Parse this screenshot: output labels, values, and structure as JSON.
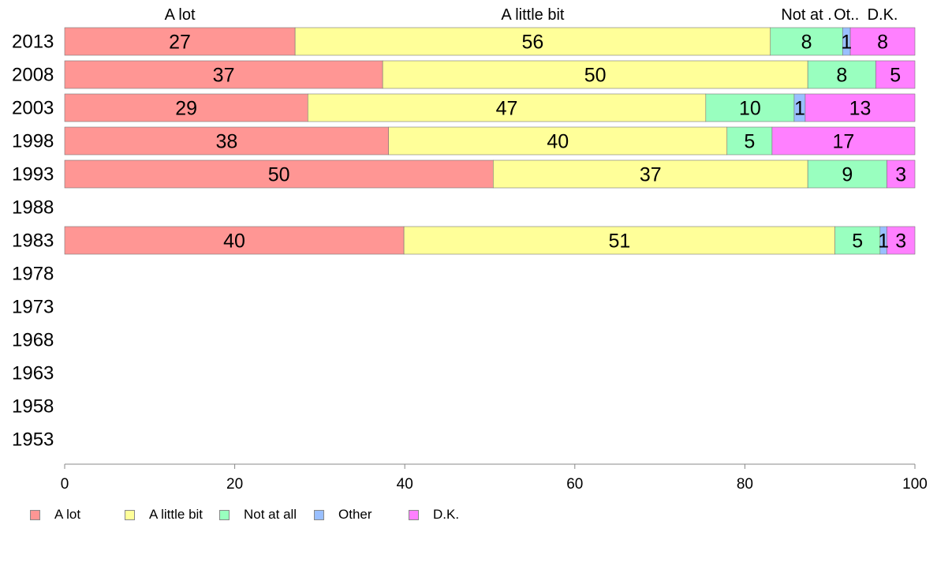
{
  "chart_data": {
    "type": "bar",
    "orientation": "horizontal",
    "stacked": true,
    "categories": [
      "2013",
      "2008",
      "2003",
      "1998",
      "1993",
      "1988",
      "1983",
      "1978",
      "1973",
      "1968",
      "1963",
      "1958",
      "1953"
    ],
    "series": [
      {
        "name": "A lot",
        "color": "#ff9694",
        "values": [
          27.1,
          37.4,
          28.6,
          38.1,
          50.4,
          null,
          39.9,
          null,
          null,
          null,
          null,
          null,
          null
        ],
        "labels": [
          "27",
          "37",
          "29",
          "38",
          "50",
          "",
          "40",
          "",
          "",
          "",
          "",
          "",
          ""
        ]
      },
      {
        "name": "A little bit",
        "color": "#ffff99",
        "values": [
          55.9,
          50.0,
          46.8,
          39.8,
          37.0,
          null,
          50.7,
          null,
          null,
          null,
          null,
          null,
          null
        ],
        "labels": [
          "56",
          "50",
          "47",
          "40",
          "37",
          "",
          "51",
          "",
          "",
          "",
          "",
          "",
          ""
        ]
      },
      {
        "name": "Not at all",
        "color": "#99ffbf",
        "values": [
          8.5,
          8.0,
          10.4,
          5.3,
          9.3,
          null,
          5.3,
          null,
          null,
          null,
          null,
          null,
          null
        ],
        "labels": [
          "8",
          "8",
          "10",
          "5",
          "9",
          "",
          "5",
          "",
          "",
          "",
          "",
          "",
          ""
        ]
      },
      {
        "name": "Other",
        "color": "#99bfff",
        "values": [
          0.9,
          0.0,
          1.3,
          0.0,
          0.0,
          null,
          0.8,
          null,
          null,
          null,
          null,
          null,
          null
        ],
        "labels": [
          "1",
          "",
          "1",
          "",
          "",
          "",
          "1",
          "",
          "",
          "",
          "",
          "",
          ""
        ]
      },
      {
        "name": "D.K.",
        "color": "#ff80ff",
        "values": [
          7.6,
          4.6,
          12.9,
          16.8,
          3.3,
          null,
          3.3,
          null,
          null,
          null,
          null,
          null,
          null
        ],
        "labels": [
          "8",
          "5",
          "13",
          "17",
          "3",
          "",
          "3",
          "",
          "",
          "",
          "",
          "",
          ""
        ]
      }
    ],
    "top_labels": [
      "A lot",
      "A little bit",
      "Not at .",
      "Ot..",
      "D.K."
    ],
    "xlim": [
      0,
      100
    ],
    "xticks": [
      0,
      20,
      40,
      60,
      80,
      100
    ],
    "title": "",
    "xlabel": "",
    "ylabel": "",
    "grid": false,
    "legend_position": "bottom-left"
  }
}
